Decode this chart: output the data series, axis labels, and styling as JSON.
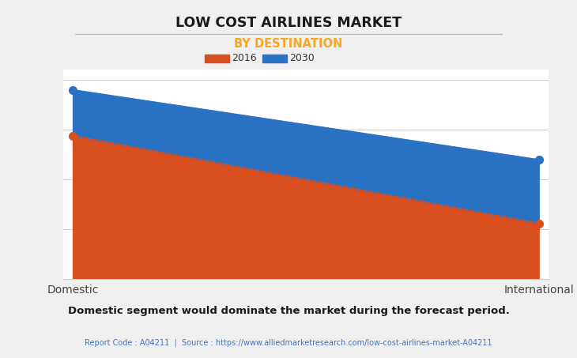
{
  "title": "LOW COST AIRLINES MARKET",
  "subtitle": "BY DESTINATION",
  "subtitle_color": "#f5a623",
  "categories": [
    "Domestic",
    "International"
  ],
  "series_2016": [
    0.72,
    0.28
  ],
  "series_2030": [
    0.95,
    0.6
  ],
  "color_2016": "#d94e1f",
  "color_2030": "#2a72c3",
  "marker_size": 7,
  "legend_labels": [
    "2016",
    "2030"
  ],
  "background_color": "#f0f0f0",
  "plot_bg_color": "#ffffff",
  "footer_text": "Domestic segment would dominate the market during the forecast period.",
  "source_text": "Report Code : A04211  |  Source : https://www.alliedmarketresearch.com/low-cost-airlines-market-A04211",
  "source_color": "#4472c4",
  "grid_color": "#cccccc",
  "ylim": [
    0,
    1.05
  ]
}
